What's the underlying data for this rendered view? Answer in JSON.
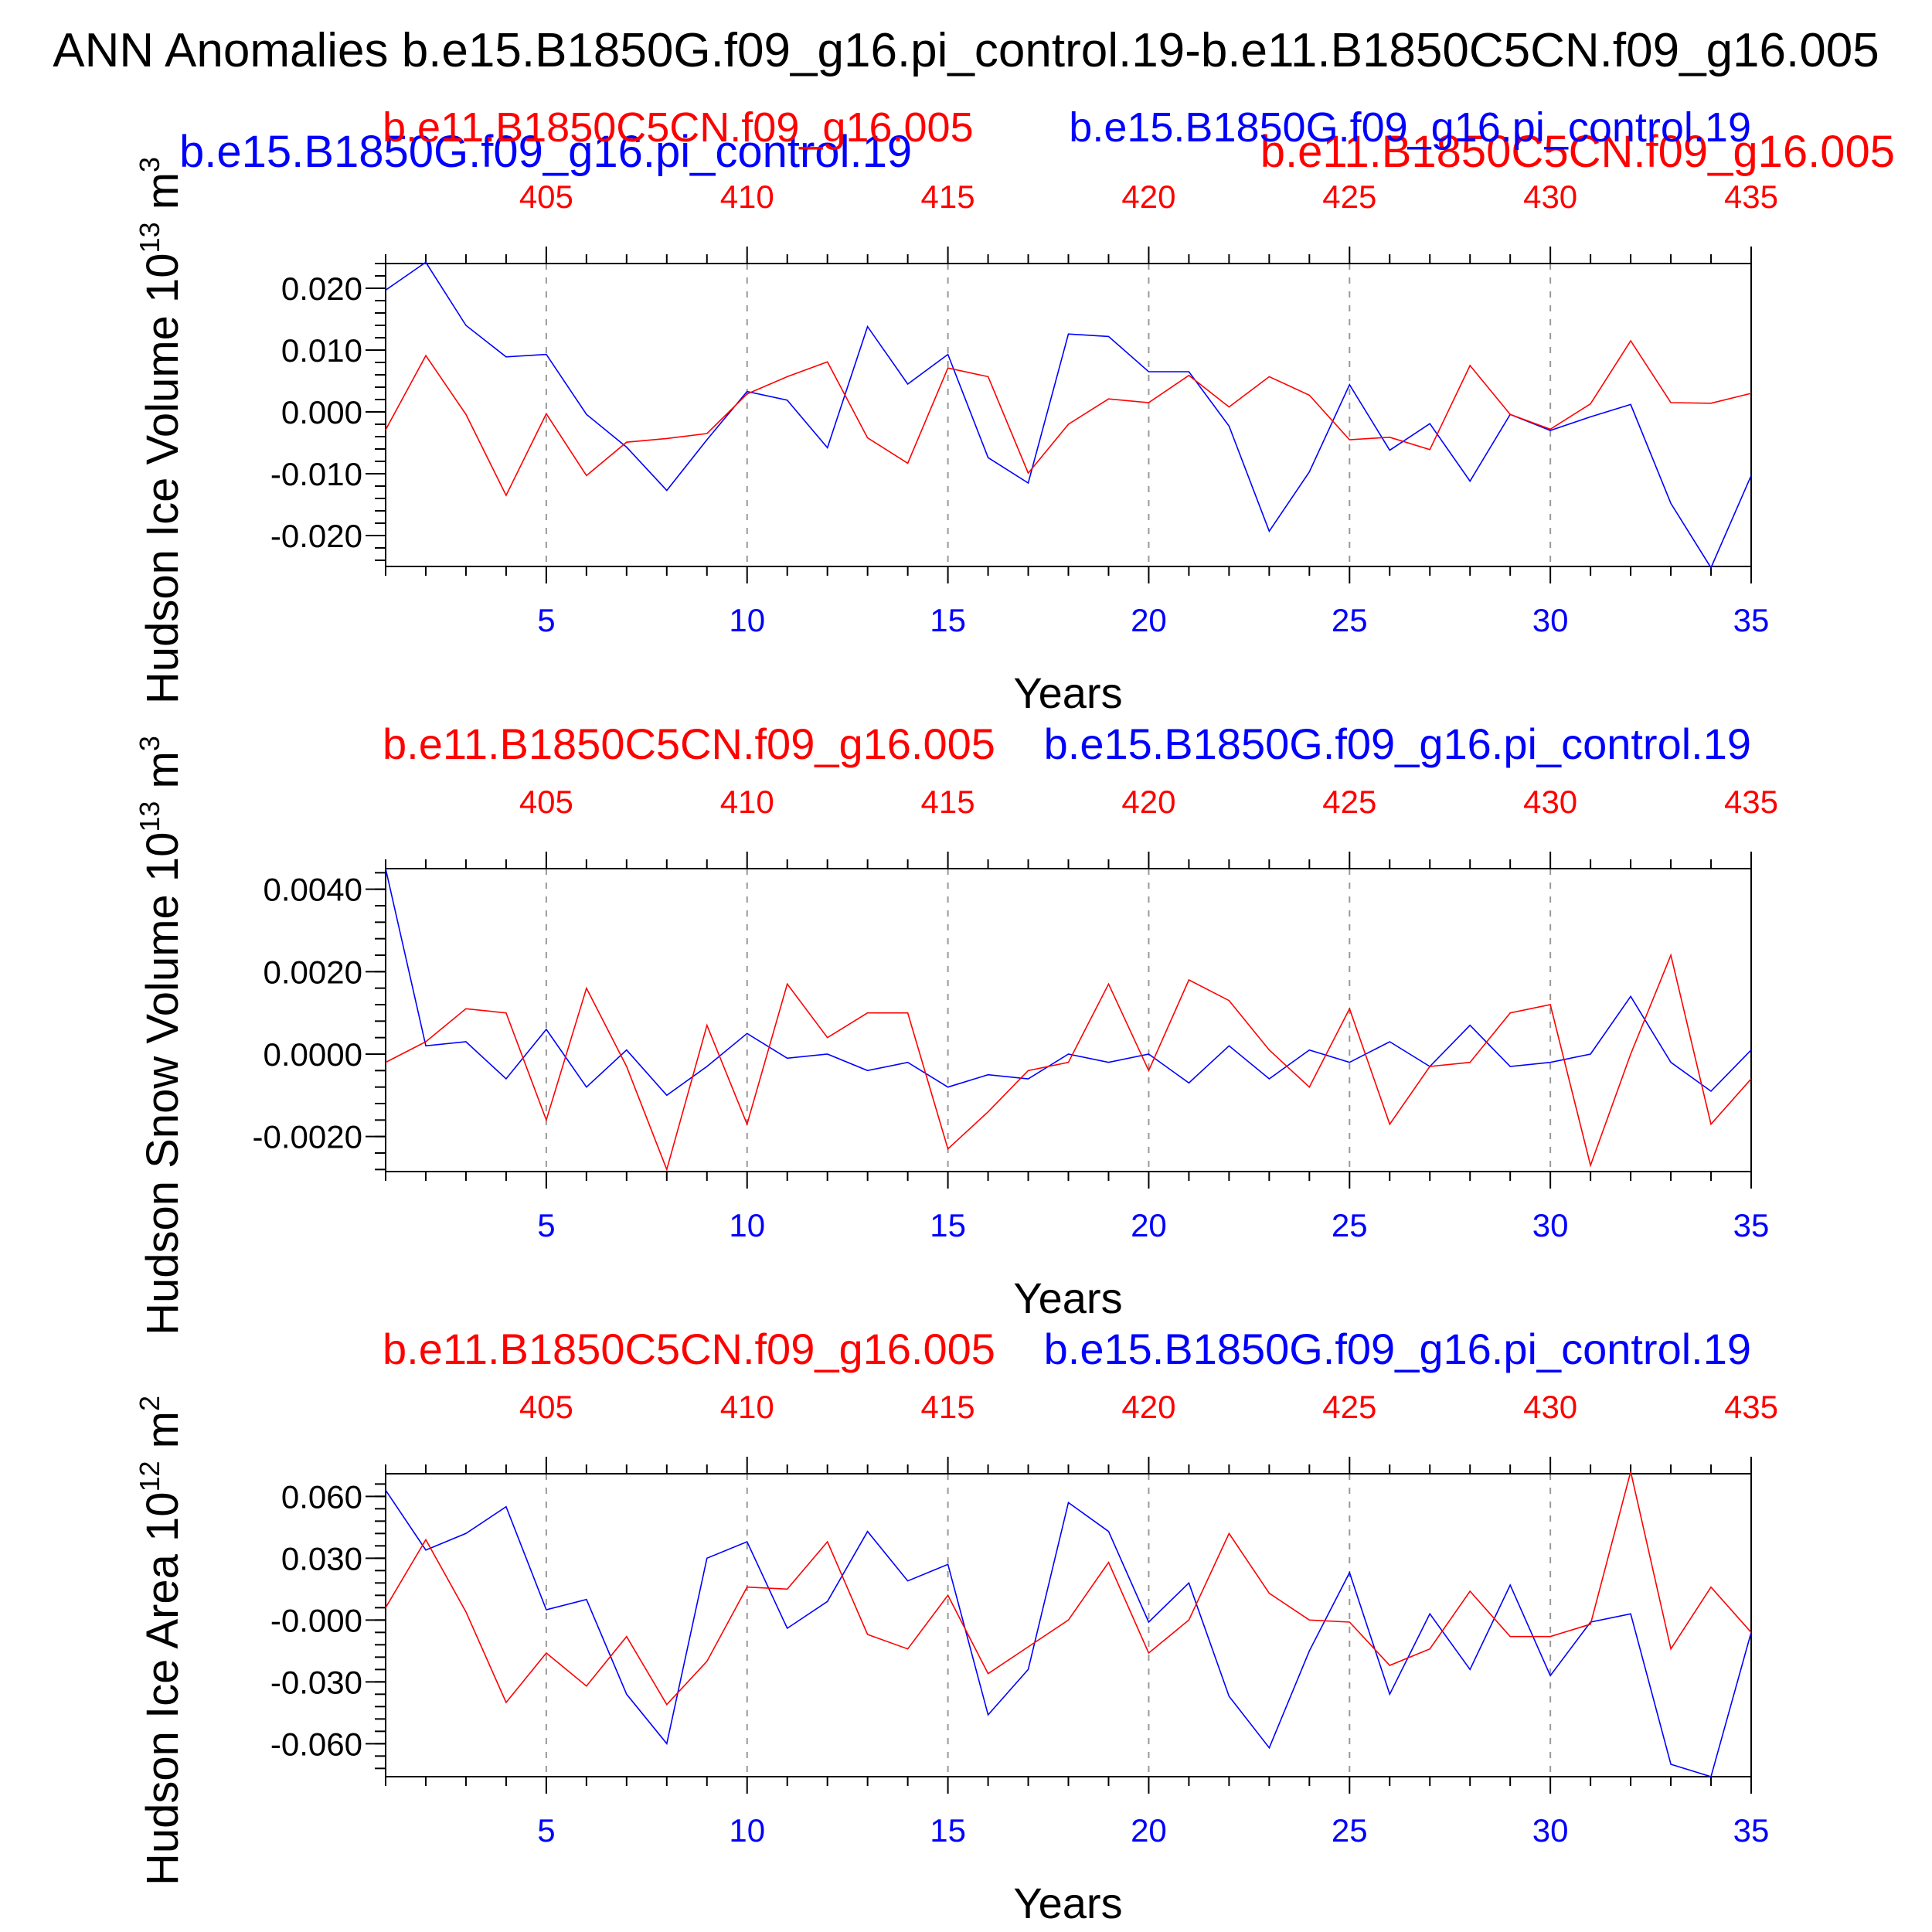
{
  "title": "ANN Anomalies b.e15.B1850G.f09_g16.pi_control.19-b.e11.B1850C5CN.f09_g16.005",
  "legend_top": {
    "left_blue": "b.e15.B1850G.f09_g16.pi_control.19",
    "right_red": "b.e11.B1850C5CN.f09_g16.005"
  },
  "colors": {
    "case1": "#0000ff",
    "case2": "#ff0000",
    "axis": "#000000",
    "grid": "#999999"
  },
  "chart_data": [
    {
      "type": "line",
      "ylabel": "Hudson Ice Volume 10^13 m^3",
      "ylabel_main": "Hudson Ice Volume 10",
      "ylabel_exp": "13",
      "ylabel_unit": "m",
      "ylabel_unit_exp": "3",
      "xlabel": "Years",
      "subtitle_red": "b.e11.B1850C5CN.f09_g16.005",
      "subtitle_blue": "b.e15.B1850G.f09_g16.pi_control.19",
      "xlim": [
        1,
        35
      ],
      "ylim": [
        -0.025,
        0.024
      ],
      "yticks": [
        0.02,
        0.01,
        0.0,
        -0.01,
        -0.02
      ],
      "ytick_labels": [
        "0.020",
        "0.010",
        "0.000",
        "-0.010",
        "-0.020"
      ],
      "xticks_bottom": [
        5,
        10,
        15,
        20,
        25,
        30,
        35
      ],
      "xticks_top": [
        405,
        410,
        415,
        420,
        425,
        430,
        435
      ],
      "x": [
        1,
        2,
        3,
        4,
        5,
        6,
        7,
        8,
        9,
        10,
        11,
        12,
        13,
        14,
        15,
        16,
        17,
        18,
        19,
        20,
        21,
        22,
        23,
        24,
        25,
        26,
        27,
        28,
        29,
        30,
        31,
        32,
        33,
        34,
        35
      ],
      "series": [
        {
          "name": "b.e15.B1850G.f09_g16.pi_control.19",
          "color": "#0000ff",
          "values": [
            0.0197,
            0.0242,
            0.014,
            0.0089,
            0.0093,
            -0.0004,
            -0.0057,
            -0.0127,
            -0.0045,
            0.0033,
            0.0019,
            -0.0058,
            0.0138,
            0.0045,
            0.0093,
            -0.0074,
            -0.0115,
            0.0126,
            0.0122,
            0.0065,
            0.0065,
            -0.0023,
            -0.0193,
            -0.0097,
            0.0044,
            -0.0062,
            -0.0019,
            -0.0112,
            -0.0004,
            -0.003,
            -0.0008,
            0.0012,
            -0.0148,
            -0.0252,
            -0.0103
          ]
        },
        {
          "name": "b.e11.B1850C5CN.f09_g16.005",
          "color": "#ff0000",
          "values": [
            -0.0029,
            0.0091,
            -0.0004,
            -0.0135,
            -0.0003,
            -0.0103,
            -0.0049,
            -0.0043,
            -0.0035,
            0.0029,
            0.0057,
            0.0081,
            -0.0042,
            -0.0083,
            0.0071,
            0.0057,
            -0.0099,
            -0.002,
            0.0021,
            0.0015,
            0.0059,
            0.0008,
            0.0057,
            0.0027,
            -0.0045,
            -0.0041,
            -0.0061,
            0.0075,
            -0.0004,
            -0.0028,
            0.0013,
            0.0115,
            0.0015,
            0.0014,
            0.003
          ]
        }
      ]
    },
    {
      "type": "line",
      "ylabel": "Hudson Snow Volume 10^13 m^3",
      "ylabel_main": "Hudson Snow Volume 10",
      "ylabel_exp": "13",
      "ylabel_unit": "m",
      "ylabel_unit_exp": "3",
      "xlabel": "Years",
      "subtitle_red": "b.e11.B1850C5CN.f09_g16.005",
      "subtitle_blue": "b.e15.B1850G.f09_g16.pi_control.19",
      "xlim": [
        1,
        35
      ],
      "ylim": [
        -0.00285,
        0.0045
      ],
      "yticks": [
        0.004,
        0.002,
        0.0,
        -0.002
      ],
      "ytick_labels": [
        "0.0040",
        "0.0020",
        "0.0000",
        "-0.0020"
      ],
      "xticks_bottom": [
        5,
        10,
        15,
        20,
        25,
        30,
        35
      ],
      "xticks_top": [
        405,
        410,
        415,
        420,
        425,
        430,
        435
      ],
      "x": [
        1,
        2,
        3,
        4,
        5,
        6,
        7,
        8,
        9,
        10,
        11,
        12,
        13,
        14,
        15,
        16,
        17,
        18,
        19,
        20,
        21,
        22,
        23,
        24,
        25,
        26,
        27,
        28,
        29,
        30,
        31,
        32,
        33,
        34,
        35
      ],
      "series": [
        {
          "name": "b.e15.B1850G.f09_g16.pi_control.19",
          "color": "#0000ff",
          "values": [
            0.0045,
            0.0002,
            0.0003,
            -0.0006,
            0.0006,
            -0.0008,
            0.0001,
            -0.001,
            -0.0003,
            0.0005,
            -0.0001,
            0.0,
            -0.0004,
            -0.0002,
            -0.0008,
            -0.0005,
            -0.0006,
            0.0,
            -0.0002,
            0.0,
            -0.0007,
            0.0002,
            -0.0006,
            0.0001,
            -0.0002,
            0.0003,
            -0.0003,
            0.0007,
            -0.0003,
            -0.0002,
            0.0,
            0.0014,
            -0.0002,
            -0.0009,
            0.0001
          ]
        },
        {
          "name": "b.e11.B1850C5CN.f09_g16.005",
          "color": "#ff0000",
          "values": [
            -0.0002,
            0.0003,
            0.0011,
            0.001,
            -0.0016,
            0.0016,
            -0.0003,
            -0.0028,
            0.0007,
            -0.0017,
            0.0017,
            0.0004,
            0.001,
            0.001,
            -0.0023,
            -0.0014,
            -0.0004,
            -0.0002,
            0.0017,
            -0.0004,
            0.0018,
            0.0013,
            0.0001,
            -0.0008,
            0.0011,
            -0.0017,
            -0.0003,
            -0.0002,
            0.001,
            0.0012,
            -0.0027,
            0.0,
            0.0024,
            -0.0017,
            -0.0006
          ]
        }
      ]
    },
    {
      "type": "line",
      "ylabel": "Hudson Ice Area 10^12 m^2",
      "ylabel_main": "Hudson Ice Area 10",
      "ylabel_exp": "12",
      "ylabel_unit": "m",
      "ylabel_unit_exp": "2",
      "xlabel": "Years",
      "subtitle_red": "b.e11.B1850C5CN.f09_g16.005",
      "subtitle_blue": "b.e15.B1850G.f09_g16.pi_control.19",
      "xlim": [
        1,
        35
      ],
      "ylim": [
        -0.076,
        0.071
      ],
      "yticks": [
        0.06,
        0.03,
        0.0,
        -0.03,
        -0.06
      ],
      "ytick_labels": [
        "0.060",
        "0.030",
        "-0.000",
        "-0.030",
        "-0.060"
      ],
      "xticks_bottom": [
        5,
        10,
        15,
        20,
        25,
        30,
        35
      ],
      "xticks_top": [
        405,
        410,
        415,
        420,
        425,
        430,
        435
      ],
      "x": [
        1,
        2,
        3,
        4,
        5,
        6,
        7,
        8,
        9,
        10,
        11,
        12,
        13,
        14,
        15,
        16,
        17,
        18,
        19,
        20,
        21,
        22,
        23,
        24,
        25,
        26,
        27,
        28,
        29,
        30,
        31,
        32,
        33,
        34,
        35
      ],
      "series": [
        {
          "name": "b.e15.B1850G.f09_g16.pi_control.19",
          "color": "#0000ff",
          "values": [
            0.063,
            0.034,
            0.042,
            0.055,
            0.005,
            0.01,
            -0.036,
            -0.06,
            0.03,
            0.038,
            -0.004,
            0.009,
            0.043,
            0.019,
            0.027,
            -0.046,
            -0.024,
            0.057,
            0.043,
            -0.001,
            0.018,
            -0.037,
            -0.062,
            -0.015,
            0.023,
            -0.036,
            0.003,
            -0.024,
            0.017,
            -0.027,
            -0.001,
            0.003,
            -0.07,
            -0.076,
            -0.006
          ]
        },
        {
          "name": "b.e11.B1850C5CN.f09_g16.005",
          "color": "#ff0000",
          "values": [
            0.006,
            0.039,
            0.004,
            -0.04,
            -0.016,
            -0.032,
            -0.008,
            -0.041,
            -0.02,
            0.016,
            0.015,
            0.038,
            -0.007,
            -0.014,
            0.012,
            -0.026,
            -0.013,
            0.0,
            0.028,
            -0.016,
            0.0,
            0.042,
            0.013,
            0.0,
            -0.001,
            -0.022,
            -0.014,
            0.014,
            -0.008,
            -0.008,
            -0.002,
            0.072,
            -0.014,
            0.016,
            -0.006
          ]
        }
      ]
    }
  ]
}
